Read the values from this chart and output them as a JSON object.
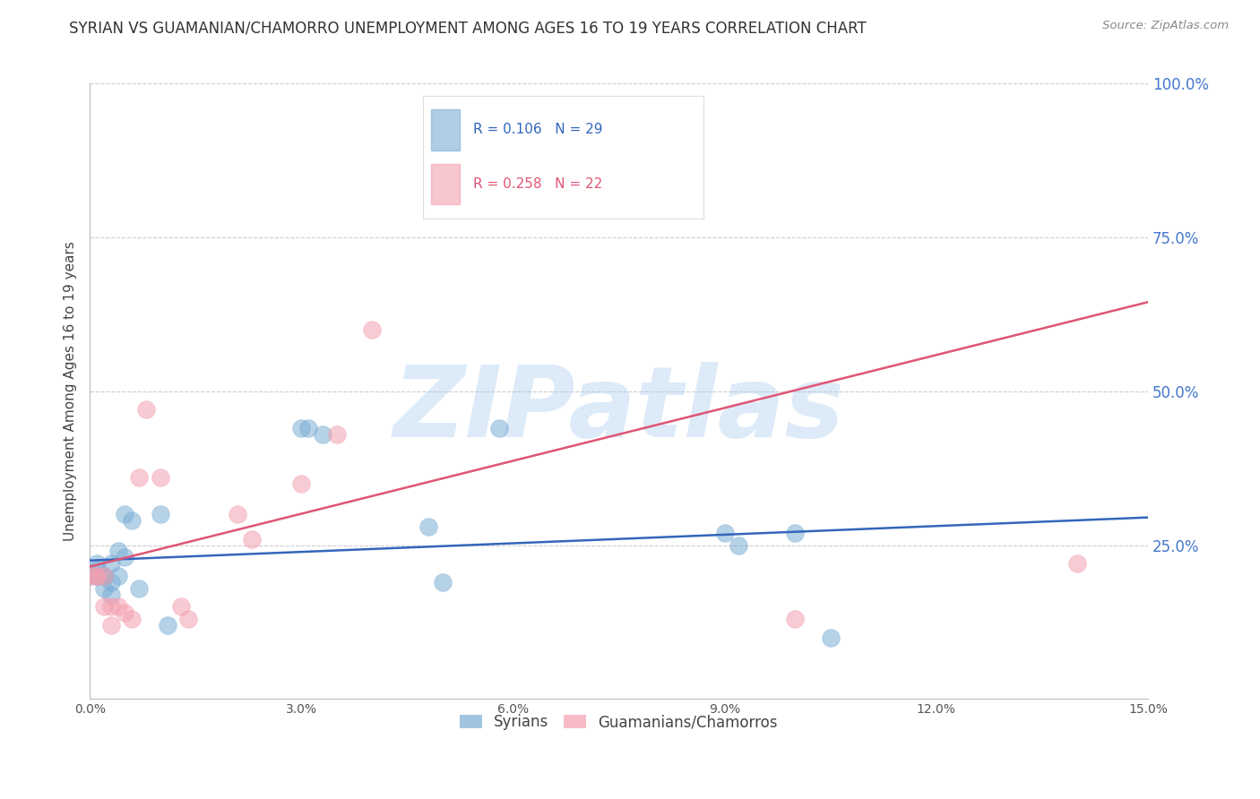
{
  "title": "SYRIAN VS GUAMANIAN/CHAMORRO UNEMPLOYMENT AMONG AGES 16 TO 19 YEARS CORRELATION CHART",
  "source": "Source: ZipAtlas.com",
  "ylabel": "Unemployment Among Ages 16 to 19 years",
  "xlim": [
    0.0,
    0.15
  ],
  "ylim": [
    0.0,
    1.0
  ],
  "xticks": [
    0.0,
    0.03,
    0.06,
    0.09,
    0.12,
    0.15
  ],
  "xtick_labels": [
    "0.0%",
    "3.0%",
    "6.0%",
    "9.0%",
    "12.0%",
    "15.0%"
  ],
  "yticks_right": [
    0.25,
    0.5,
    0.75,
    1.0
  ],
  "ytick_labels_right": [
    "25.0%",
    "50.0%",
    "75.0%",
    "100.0%"
  ],
  "syrian_x": [
    0.0,
    0.001,
    0.001,
    0.001,
    0.001,
    0.002,
    0.002,
    0.002,
    0.003,
    0.003,
    0.003,
    0.004,
    0.004,
    0.005,
    0.005,
    0.006,
    0.007,
    0.01,
    0.011,
    0.03,
    0.031,
    0.033,
    0.048,
    0.05,
    0.058,
    0.09,
    0.092,
    0.1,
    0.105
  ],
  "syrian_y": [
    0.2,
    0.2,
    0.21,
    0.2,
    0.22,
    0.2,
    0.18,
    0.2,
    0.19,
    0.22,
    0.17,
    0.2,
    0.24,
    0.3,
    0.23,
    0.29,
    0.18,
    0.3,
    0.12,
    0.44,
    0.44,
    0.43,
    0.28,
    0.19,
    0.44,
    0.27,
    0.25,
    0.27,
    0.1
  ],
  "guamanian_x": [
    0.0,
    0.001,
    0.001,
    0.002,
    0.002,
    0.003,
    0.003,
    0.004,
    0.005,
    0.006,
    0.007,
    0.008,
    0.01,
    0.013,
    0.014,
    0.021,
    0.023,
    0.03,
    0.035,
    0.04,
    0.1,
    0.14
  ],
  "guamanian_y": [
    0.2,
    0.2,
    0.2,
    0.2,
    0.15,
    0.15,
    0.12,
    0.15,
    0.14,
    0.13,
    0.36,
    0.47,
    0.36,
    0.15,
    0.13,
    0.3,
    0.26,
    0.35,
    0.43,
    0.6,
    0.13,
    0.22
  ],
  "syrian_R": 0.106,
  "syrian_N": 29,
  "guamanian_R": 0.258,
  "guamanian_N": 22,
  "syrian_color": "#7aadd4",
  "guamanian_color": "#f4a0b0",
  "syrian_line_color": "#3366bb",
  "guamanian_line_color": "#e05575",
  "watermark": "ZIPatlas",
  "watermark_color": "#aaccee",
  "background_color": "#FFFFFF",
  "title_fontsize": 12,
  "axis_label_fontsize": 11,
  "tick_label_fontsize": 10,
  "right_tick_color": "#4477CC",
  "marker_size": 200,
  "marker_alpha": 0.55
}
